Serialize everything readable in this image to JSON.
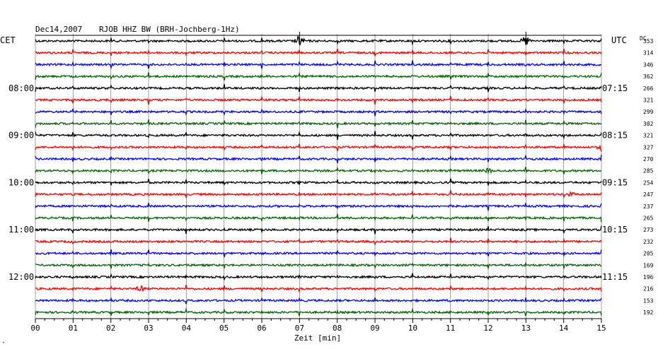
{
  "header": {
    "date": "Dec14,2007",
    "station": "RJOB HHZ BW (BRH-Jochberg-1Hz)"
  },
  "labels": {
    "left_tz": "CET",
    "right_tz": "UTC",
    "dc": "DC",
    "footer_mark": "·"
  },
  "chart_data": {
    "type": "line",
    "title": "Dec14,2007   RJOB HHZ BW (BRH-Jochberg-1Hz)",
    "xlabel": "Zeit [min]",
    "x_ticks": [
      "00",
      "01",
      "02",
      "03",
      "04",
      "05",
      "06",
      "07",
      "08",
      "09",
      "10",
      "11",
      "12",
      "13",
      "14",
      "15"
    ],
    "xlim": [
      0,
      15
    ],
    "grid": true,
    "trace_colors": [
      "#000000",
      "#ff0000",
      "#0000ff",
      "#006400"
    ],
    "rows": 24,
    "left_hour_labels": [
      {
        "row": 4,
        "label": "08:00"
      },
      {
        "row": 8,
        "label": "09:00"
      },
      {
        "row": 12,
        "label": "10:00"
      },
      {
        "row": 16,
        "label": "11:00"
      },
      {
        "row": 20,
        "label": "12:00"
      }
    ],
    "right_hour_labels": [
      {
        "row": 4,
        "label": "07:15"
      },
      {
        "row": 8,
        "label": "08:15"
      },
      {
        "row": 12,
        "label": "09:15"
      },
      {
        "row": 16,
        "label": "10:15"
      },
      {
        "row": 20,
        "label": "11:15"
      }
    ],
    "dc_values": [
      353,
      314,
      346,
      362,
      266,
      321,
      299,
      302,
      321,
      327,
      270,
      285,
      254,
      247,
      237,
      265,
      273,
      232,
      205,
      169,
      196,
      216,
      153,
      192
    ],
    "events": [
      {
        "row": 0,
        "t": 7.0,
        "amp": 1.0
      },
      {
        "row": 0,
        "t": 13.0,
        "amp": 1.0
      },
      {
        "row": 9,
        "t": 15.0,
        "amp": 0.5
      },
      {
        "row": 11,
        "t": 12.0,
        "amp": 0.4
      },
      {
        "row": 13,
        "t": 14.2,
        "amp": 0.3
      },
      {
        "row": 21,
        "t": 2.8,
        "amp": 0.5
      }
    ]
  }
}
